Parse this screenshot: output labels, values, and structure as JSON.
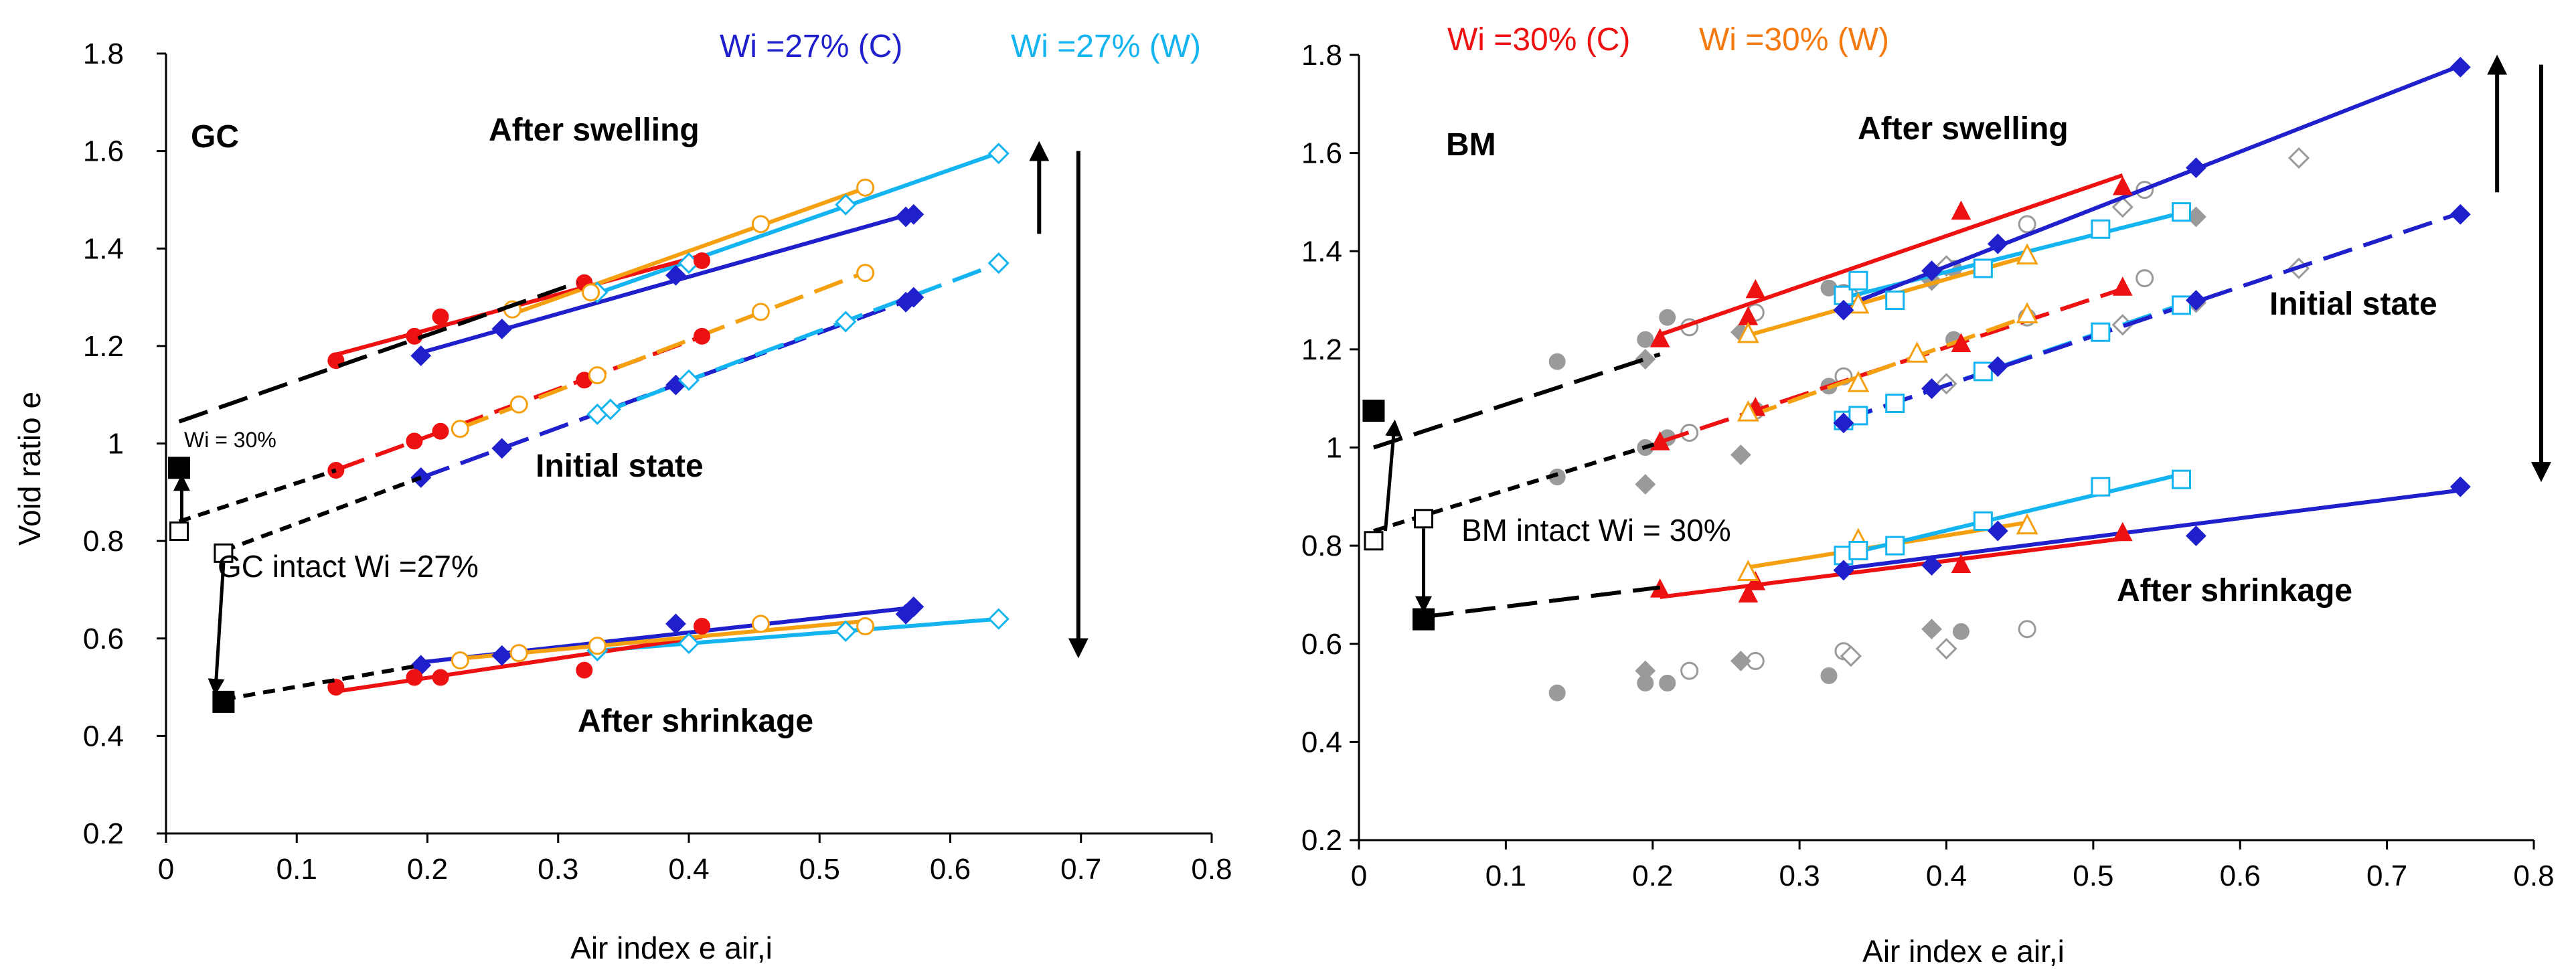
{
  "colors": {
    "dark_blue": "#1f1fcc",
    "light_blue": "#14b4f0",
    "red": "#ee1111",
    "orange": "#f4a010",
    "black": "#000000",
    "grey": "#999999"
  },
  "chart_data": [
    {
      "type": "line",
      "title": "GC",
      "xlabel": "Air index  e air,i",
      "ylabel": "Void ratio e",
      "xlim": [
        0,
        0.8
      ],
      "ylim": [
        0.2,
        1.8
      ],
      "x_ticks": [
        "0",
        "0.1",
        "0.2",
        "0.3",
        "0.4",
        "0.5",
        "0.6",
        "0.7",
        "0.8"
      ],
      "y_ticks": [
        "0.2",
        "0.4",
        "0.6",
        "0.8",
        "1",
        "1.2",
        "1.4",
        "1.6",
        "1.8"
      ],
      "legend": [
        {
          "label": "Wi =27% (C)",
          "color": "#1f1fcc"
        },
        {
          "label": "Wi =27% (W)",
          "color": "#14b4f0"
        }
      ],
      "annotations": {
        "swell": "After swelling",
        "initial": "Initial state",
        "shrink": "After shrinkage",
        "intact": "GC intact Wi =27%",
        "wi30": "Wi = 30%"
      },
      "series": [
        {
          "name": "swell C-blue",
          "group": "swelling",
          "color": "#1f1fcc",
          "marker": "diamond-filled",
          "x": [
            0.195,
            0.257,
            0.39,
            0.566,
            0.572
          ],
          "y": [
            1.18,
            1.235,
            1.345,
            1.465,
            1.47
          ]
        },
        {
          "name": "swell W-lightblue",
          "group": "swelling",
          "color": "#14b4f0",
          "marker": "diamond-open",
          "x": [
            0.33,
            0.4,
            0.52,
            0.637
          ],
          "y": [
            1.31,
            1.37,
            1.49,
            1.595
          ]
        },
        {
          "name": "swell C-red",
          "group": "swelling",
          "color": "#ee1111",
          "marker": "circle-filled",
          "x": [
            0.13,
            0.19,
            0.21,
            0.32,
            0.41
          ],
          "y": [
            1.17,
            1.22,
            1.26,
            1.33,
            1.375
          ]
        },
        {
          "name": "swell W-orange",
          "group": "swelling",
          "color": "#f4a010",
          "marker": "circle-open",
          "x": [
            0.265,
            0.325,
            0.455,
            0.535
          ],
          "y": [
            1.275,
            1.31,
            1.45,
            1.525
          ]
        },
        {
          "name": "initial C-blue",
          "group": "initial",
          "color": "#1f1fcc",
          "marker": "diamond-filled",
          "x": [
            0.195,
            0.257,
            0.39,
            0.566,
            0.572
          ],
          "y": [
            0.93,
            0.99,
            1.12,
            1.29,
            1.3
          ]
        },
        {
          "name": "initial W-lightblue",
          "group": "initial",
          "color": "#14b4f0",
          "marker": "diamond-open",
          "x": [
            0.33,
            0.34,
            0.4,
            0.52,
            0.637
          ],
          "y": [
            1.06,
            1.07,
            1.13,
            1.25,
            1.37
          ]
        },
        {
          "name": "initial C-red",
          "group": "initial",
          "color": "#ee1111",
          "marker": "circle-filled",
          "x": [
            0.13,
            0.19,
            0.21,
            0.32,
            0.41
          ],
          "y": [
            0.945,
            1.005,
            1.025,
            1.13,
            1.22
          ]
        },
        {
          "name": "initial W-orange",
          "group": "initial",
          "color": "#f4a010",
          "marker": "circle-open",
          "x": [
            0.225,
            0.27,
            0.33,
            0.455,
            0.535
          ],
          "y": [
            1.03,
            1.08,
            1.14,
            1.27,
            1.35
          ]
        },
        {
          "name": "shrink C-blue",
          "group": "shrinkage",
          "color": "#1f1fcc",
          "marker": "diamond-filled",
          "x": [
            0.195,
            0.257,
            0.39,
            0.566,
            0.572
          ],
          "y": [
            0.545,
            0.565,
            0.63,
            0.65,
            0.665
          ]
        },
        {
          "name": "shrink W-lightblue",
          "group": "shrinkage",
          "color": "#14b4f0",
          "marker": "diamond-open",
          "x": [
            0.33,
            0.4,
            0.52,
            0.637
          ],
          "y": [
            0.575,
            0.59,
            0.615,
            0.64
          ]
        },
        {
          "name": "shrink C-red",
          "group": "shrinkage",
          "color": "#ee1111",
          "marker": "circle-filled",
          "x": [
            0.13,
            0.19,
            0.21,
            0.32,
            0.41
          ],
          "y": [
            0.5,
            0.52,
            0.52,
            0.535,
            0.625
          ]
        },
        {
          "name": "shrink W-orange",
          "group": "shrinkage",
          "color": "#f4a010",
          "marker": "circle-open",
          "x": [
            0.225,
            0.27,
            0.33,
            0.455,
            0.535
          ],
          "y": [
            0.555,
            0.57,
            0.585,
            0.63,
            0.625
          ]
        }
      ],
      "reference_points": [
        {
          "label": "intact",
          "x": 0.044,
          "y": 0.775,
          "marker": "square-open"
        },
        {
          "label": "wi30",
          "x": 0.01,
          "y": 0.82,
          "marker": "square-open"
        },
        {
          "label": "wi30 swell",
          "x": 0.01,
          "y": 0.95,
          "marker": "square-filled"
        },
        {
          "label": "shrunk",
          "x": 0.044,
          "y": 0.47,
          "marker": "square-filled"
        }
      ]
    },
    {
      "type": "line",
      "title": "BM",
      "xlabel": "Air index  e air,i",
      "ylabel": "",
      "xlim": [
        0,
        0.8
      ],
      "ylim": [
        0.2,
        1.8
      ],
      "x_ticks": [
        "0",
        "0.1",
        "0.2",
        "0.3",
        "0.4",
        "0.5",
        "0.6",
        "0.7",
        "0.8"
      ],
      "y_ticks": [
        "0.2",
        "0.4",
        "0.6",
        "0.8",
        "1",
        "1.2",
        "1.4",
        "1.6",
        "1.8"
      ],
      "legend": [
        {
          "label": "Wi =30% (C)",
          "color": "#ee1111"
        },
        {
          "label": "Wi =30% (W)",
          "color": "#f4a010"
        }
      ],
      "annotations": {
        "swell": "After swelling",
        "initial": "Initial state",
        "shrink": "After shrinkage",
        "intact": "BM intact  Wi = 30%"
      },
      "series": [
        {
          "name": "swell C-red",
          "group": "swelling",
          "color": "#ee1111",
          "marker": "triangle-filled",
          "x": [
            0.205,
            0.265,
            0.27,
            0.41,
            0.52
          ],
          "y": [
            1.22,
            1.265,
            1.32,
            1.48,
            1.53
          ]
        },
        {
          "name": "swell W-orange",
          "group": "swelling",
          "color": "#f4a010",
          "marker": "triangle-open",
          "x": [
            0.265,
            0.34,
            0.455
          ],
          "y": [
            1.23,
            1.29,
            1.39
          ]
        },
        {
          "name": "swell W-lightblue",
          "group": "swelling",
          "color": "#14b4f0",
          "marker": "square-open",
          "x": [
            0.33,
            0.34,
            0.365,
            0.425,
            0.505,
            0.56
          ],
          "y": [
            1.31,
            1.34,
            1.3,
            1.365,
            1.445,
            1.48
          ]
        },
        {
          "name": "swell C-blue",
          "group": "swelling",
          "color": "#1f1fcc",
          "marker": "diamond-filled",
          "x": [
            0.33,
            0.39,
            0.435,
            0.57,
            0.75
          ],
          "y": [
            1.28,
            1.36,
            1.415,
            1.57,
            1.775
          ]
        },
        {
          "name": "initial C-red",
          "group": "initial",
          "color": "#ee1111",
          "marker": "triangle-filled",
          "x": [
            0.205,
            0.265,
            0.27,
            0.41,
            0.52
          ],
          "y": [
            1.01,
            1.07,
            1.08,
            1.21,
            1.325
          ]
        },
        {
          "name": "initial W-orange",
          "group": "initial",
          "color": "#f4a010",
          "marker": "triangle-open",
          "x": [
            0.265,
            0.34,
            0.38,
            0.455
          ],
          "y": [
            1.07,
            1.13,
            1.19,
            1.27
          ]
        },
        {
          "name": "initial W-lightblue",
          "group": "initial",
          "color": "#14b4f0",
          "marker": "square-open",
          "x": [
            0.33,
            0.34,
            0.365,
            0.425,
            0.505,
            0.56
          ],
          "y": [
            1.055,
            1.065,
            1.09,
            1.155,
            1.235,
            1.29
          ]
        },
        {
          "name": "initial C-blue",
          "group": "initial",
          "color": "#1f1fcc",
          "marker": "diamond-filled",
          "x": [
            0.33,
            0.39,
            0.435,
            0.57,
            0.75
          ],
          "y": [
            1.05,
            1.12,
            1.165,
            1.3,
            1.475
          ]
        },
        {
          "name": "shrink C-red",
          "group": "shrinkage",
          "color": "#ee1111",
          "marker": "triangle-filled",
          "x": [
            0.205,
            0.265,
            0.27,
            0.41,
            0.52
          ],
          "y": [
            0.71,
            0.7,
            0.725,
            0.76,
            0.825
          ]
        },
        {
          "name": "shrink W-orange",
          "group": "shrinkage",
          "color": "#f4a010",
          "marker": "triangle-open",
          "x": [
            0.265,
            0.34,
            0.455
          ],
          "y": [
            0.745,
            0.81,
            0.84
          ]
        },
        {
          "name": "shrink W-lightblue",
          "group": "shrinkage",
          "color": "#14b4f0",
          "marker": "square-open",
          "x": [
            0.33,
            0.34,
            0.365,
            0.425,
            0.505,
            0.56
          ],
          "y": [
            0.78,
            0.79,
            0.8,
            0.85,
            0.92,
            0.935
          ]
        },
        {
          "name": "shrink C-blue",
          "group": "shrinkage",
          "color": "#1f1fcc",
          "marker": "diamond-filled",
          "x": [
            0.33,
            0.39,
            0.435,
            0.57,
            0.75
          ],
          "y": [
            0.75,
            0.76,
            0.83,
            0.82,
            0.92
          ]
        }
      ],
      "background_points": {
        "grey_filled_circle": [
          [
            0.135,
            1.175
          ],
          [
            0.195,
            1.22
          ],
          [
            0.21,
            1.265
          ],
          [
            0.32,
            1.325
          ],
          [
            0.405,
            1.365
          ],
          [
            0.135,
            0.94
          ],
          [
            0.195,
            1.0
          ],
          [
            0.21,
            1.02
          ],
          [
            0.32,
            1.125
          ],
          [
            0.405,
            1.22
          ],
          [
            0.135,
            0.5
          ],
          [
            0.195,
            0.52
          ],
          [
            0.21,
            0.52
          ],
          [
            0.32,
            0.535
          ],
          [
            0.41,
            0.625
          ]
        ],
        "grey_open_circle": [
          [
            0.225,
            1.245
          ],
          [
            0.27,
            1.275
          ],
          [
            0.33,
            1.315
          ],
          [
            0.455,
            1.455
          ],
          [
            0.535,
            1.525
          ],
          [
            0.225,
            1.03
          ],
          [
            0.27,
            1.075
          ],
          [
            0.33,
            1.145
          ],
          [
            0.455,
            1.265
          ],
          [
            0.535,
            1.345
          ],
          [
            0.225,
            0.545
          ],
          [
            0.27,
            0.565
          ],
          [
            0.33,
            0.585
          ],
          [
            0.455,
            0.63
          ]
        ],
        "grey_filled_diamond": [
          [
            0.195,
            1.18
          ],
          [
            0.26,
            1.235
          ],
          [
            0.39,
            1.34
          ],
          [
            0.57,
            1.47
          ],
          [
            0.195,
            0.925
          ],
          [
            0.26,
            0.985
          ],
          [
            0.39,
            1.12
          ],
          [
            0.57,
            1.295
          ],
          [
            0.195,
            0.545
          ],
          [
            0.26,
            0.565
          ],
          [
            0.39,
            0.63
          ]
        ],
        "grey_open_diamond": [
          [
            0.335,
            1.31
          ],
          [
            0.4,
            1.37
          ],
          [
            0.52,
            1.49
          ],
          [
            0.64,
            1.59
          ],
          [
            0.335,
            1.06
          ],
          [
            0.4,
            1.13
          ],
          [
            0.52,
            1.25
          ],
          [
            0.64,
            1.365
          ],
          [
            0.335,
            0.575
          ],
          [
            0.4,
            0.59
          ]
        ]
      },
      "reference_points": [
        {
          "label": "wi30 swell",
          "x": 0.01,
          "y": 1.075,
          "marker": "square-filled"
        },
        {
          "label": "intact",
          "x": 0.044,
          "y": 0.855,
          "marker": "square-open"
        },
        {
          "label": "wi30",
          "x": 0.01,
          "y": 0.81,
          "marker": "square-open"
        },
        {
          "label": "shrunk",
          "x": 0.044,
          "y": 0.65,
          "marker": "square-filled"
        }
      ]
    }
  ]
}
